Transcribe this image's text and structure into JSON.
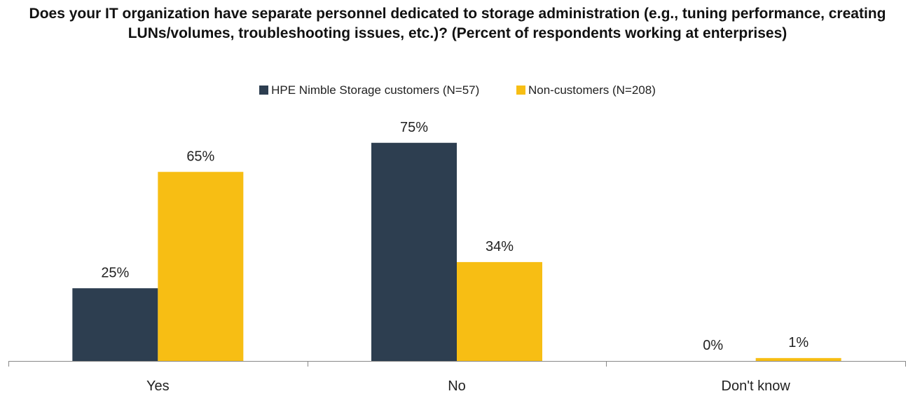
{
  "chart_data": {
    "type": "bar",
    "title": "Does your IT organization have separate personnel dedicated to storage administration (e.g., tuning performance, creating LUNs/volumes, troubleshooting issues, etc.)? (Percent of respondents working at enterprises)",
    "categories": [
      "Yes",
      "No",
      "Don't know"
    ],
    "series": [
      {
        "name": "HPE Nimble Storage customers (N=57)",
        "values": [
          25,
          75,
          0
        ],
        "labels": [
          "25%",
          "75%",
          "0%"
        ],
        "color": "#2d3e50"
      },
      {
        "name": "Non-customers (N=208)",
        "values": [
          65,
          34,
          1
        ],
        "labels": [
          "65%",
          "34%",
          "1%"
        ],
        "color": "#f7be14"
      }
    ],
    "ylim": [
      0,
      80
    ],
    "legend_position": "top-center",
    "grid": false
  }
}
